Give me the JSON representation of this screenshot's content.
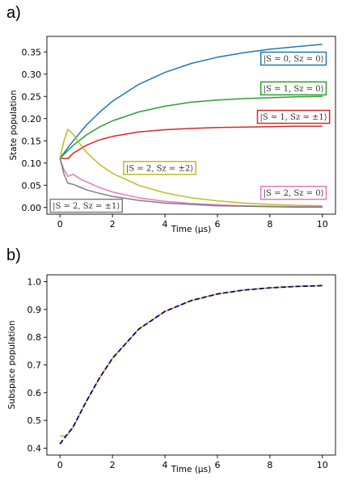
{
  "panels": {
    "a_label": "a)",
    "b_label": "b)"
  },
  "chart_data": [
    {
      "type": "line",
      "xlabel": "Time (μs)",
      "ylabel": "State population",
      "xlim": [
        -0.5,
        10.5
      ],
      "ylim": [
        -0.015,
        0.385
      ],
      "xticks": [
        0,
        2,
        4,
        6,
        8,
        10
      ],
      "xtick_labels": [
        "0",
        "2",
        "4",
        "6",
        "8",
        "10"
      ],
      "yticks": [
        0.0,
        0.05,
        0.1,
        0.15,
        0.2,
        0.25,
        0.3,
        0.35
      ],
      "ytick_labels": [
        "0.00",
        "0.05",
        "0.10",
        "0.15",
        "0.20",
        "0.25",
        "0.30",
        "0.35"
      ],
      "grid": false,
      "series": [
        {
          "name": "|S = 0, Sz = 0⟩",
          "color": "#1f77b4",
          "x": [
            0,
            0.5,
            1,
            1.5,
            2,
            3,
            4,
            5,
            6,
            7,
            8,
            9,
            10
          ],
          "y": [
            0.111,
            0.15,
            0.185,
            0.214,
            0.239,
            0.277,
            0.304,
            0.324,
            0.338,
            0.348,
            0.356,
            0.362,
            0.367
          ]
        },
        {
          "name": "|S = 1, Sz = 0⟩",
          "color": "#2ca02c",
          "x": [
            0,
            0.5,
            1,
            1.5,
            2,
            3,
            4,
            5,
            6,
            7,
            8,
            9,
            10
          ],
          "y": [
            0.111,
            0.14,
            0.163,
            0.181,
            0.195,
            0.215,
            0.228,
            0.237,
            0.242,
            0.245,
            0.247,
            0.249,
            0.25
          ]
        },
        {
          "name": "|S = 1, Sz = ±1⟩",
          "color": "#d62728",
          "x": [
            0,
            0.3,
            0.5,
            1,
            1.5,
            2,
            3,
            4,
            5,
            6,
            7,
            8,
            9,
            10
          ],
          "y": [
            0.111,
            0.11,
            0.122,
            0.14,
            0.152,
            0.16,
            0.17,
            0.175,
            0.178,
            0.18,
            0.181,
            0.182,
            0.183,
            0.183
          ]
        },
        {
          "name": "|S = 2, Sz = ±2⟩",
          "color": "#bcbd22",
          "x": [
            0,
            0.15,
            0.3,
            0.5,
            0.8,
            1,
            1.5,
            2,
            3,
            4,
            5,
            6,
            7,
            8,
            9,
            10
          ],
          "y": [
            0.111,
            0.15,
            0.176,
            0.165,
            0.14,
            0.125,
            0.097,
            0.077,
            0.05,
            0.033,
            0.022,
            0.015,
            0.01,
            0.007,
            0.005,
            0.004
          ]
        },
        {
          "name": "|S = 2, Sz = 0⟩",
          "color": "#e377c2",
          "x": [
            0,
            0.15,
            0.3,
            0.5,
            0.8,
            1,
            1.5,
            2,
            3,
            4,
            5,
            6,
            7,
            8,
            9,
            10
          ],
          "y": [
            0.111,
            0.085,
            0.07,
            0.075,
            0.063,
            0.058,
            0.045,
            0.035,
            0.022,
            0.014,
            0.009,
            0.006,
            0.004,
            0.003,
            0.002,
            0.002
          ]
        },
        {
          "name": "|S = 2, Sz = ±1⟩",
          "color": "#7f7f7f",
          "x": [
            0,
            0.15,
            0.3,
            0.5,
            0.8,
            1,
            1.5,
            2,
            3,
            4,
            5,
            6,
            7,
            8,
            9,
            10
          ],
          "y": [
            0.111,
            0.075,
            0.055,
            0.052,
            0.045,
            0.04,
            0.032,
            0.025,
            0.016,
            0.01,
            0.007,
            0.004,
            0.003,
            0.002,
            0.001,
            0.001
          ]
        }
      ],
      "annotations": [
        {
          "text": "|S = 0, Sz = 0⟩",
          "x": 8.9,
          "y": 0.335,
          "color": "#1f77b4"
        },
        {
          "text": "|S = 1, Sz = 0⟩",
          "x": 8.9,
          "y": 0.268,
          "color": "#2ca02c"
        },
        {
          "text": "|S = 1, Sz = ±1⟩",
          "x": 8.9,
          "y": 0.204,
          "color": "#d62728"
        },
        {
          "text": "|S = 2, Sz = ±2⟩",
          "x": 3.8,
          "y": 0.089,
          "color": "#bcbd22"
        },
        {
          "text": "|S = 2, Sz = 0⟩",
          "x": 8.9,
          "y": 0.033,
          "color": "#e377c2"
        },
        {
          "text": "|S = 2, Sz = ±1⟩",
          "x": 1.0,
          "y": 0.004,
          "color": "#7f7f7f"
        }
      ]
    },
    {
      "type": "line",
      "xlabel": "Time (μs)",
      "ylabel": "Subspace population",
      "xlim": [
        -0.5,
        10.5
      ],
      "ylim": [
        0.375,
        1.025
      ],
      "xticks": [
        0,
        2,
        4,
        6,
        8,
        10
      ],
      "xtick_labels": [
        "0",
        "2",
        "4",
        "6",
        "8",
        "10"
      ],
      "yticks": [
        0.4,
        0.5,
        0.6,
        0.7,
        0.8,
        0.9,
        1.0
      ],
      "ytick_labels": [
        "0.4",
        "0.5",
        "0.6",
        "0.7",
        "0.8",
        "0.9",
        "1.0"
      ],
      "grid": false,
      "series": [
        {
          "color": "#e0a000",
          "dash": false,
          "x": [
            0,
            0.1,
            0.2,
            0.3,
            0.5,
            1,
            1.5,
            2,
            3,
            4,
            5,
            6,
            7,
            8,
            9,
            10
          ],
          "y": [
            0.445,
            0.443,
            0.444,
            0.45,
            0.475,
            0.568,
            0.652,
            0.724,
            0.829,
            0.893,
            0.932,
            0.956,
            0.97,
            0.978,
            0.983,
            0.986
          ]
        },
        {
          "color": "#00008b",
          "dash": true,
          "x": [
            0,
            0.1,
            0.2,
            0.3,
            0.5,
            1,
            1.5,
            2,
            3,
            4,
            5,
            6,
            7,
            8,
            9,
            10
          ],
          "y": [
            0.415,
            0.428,
            0.44,
            0.452,
            0.477,
            0.568,
            0.652,
            0.724,
            0.829,
            0.893,
            0.932,
            0.956,
            0.97,
            0.978,
            0.983,
            0.986
          ]
        }
      ]
    }
  ]
}
